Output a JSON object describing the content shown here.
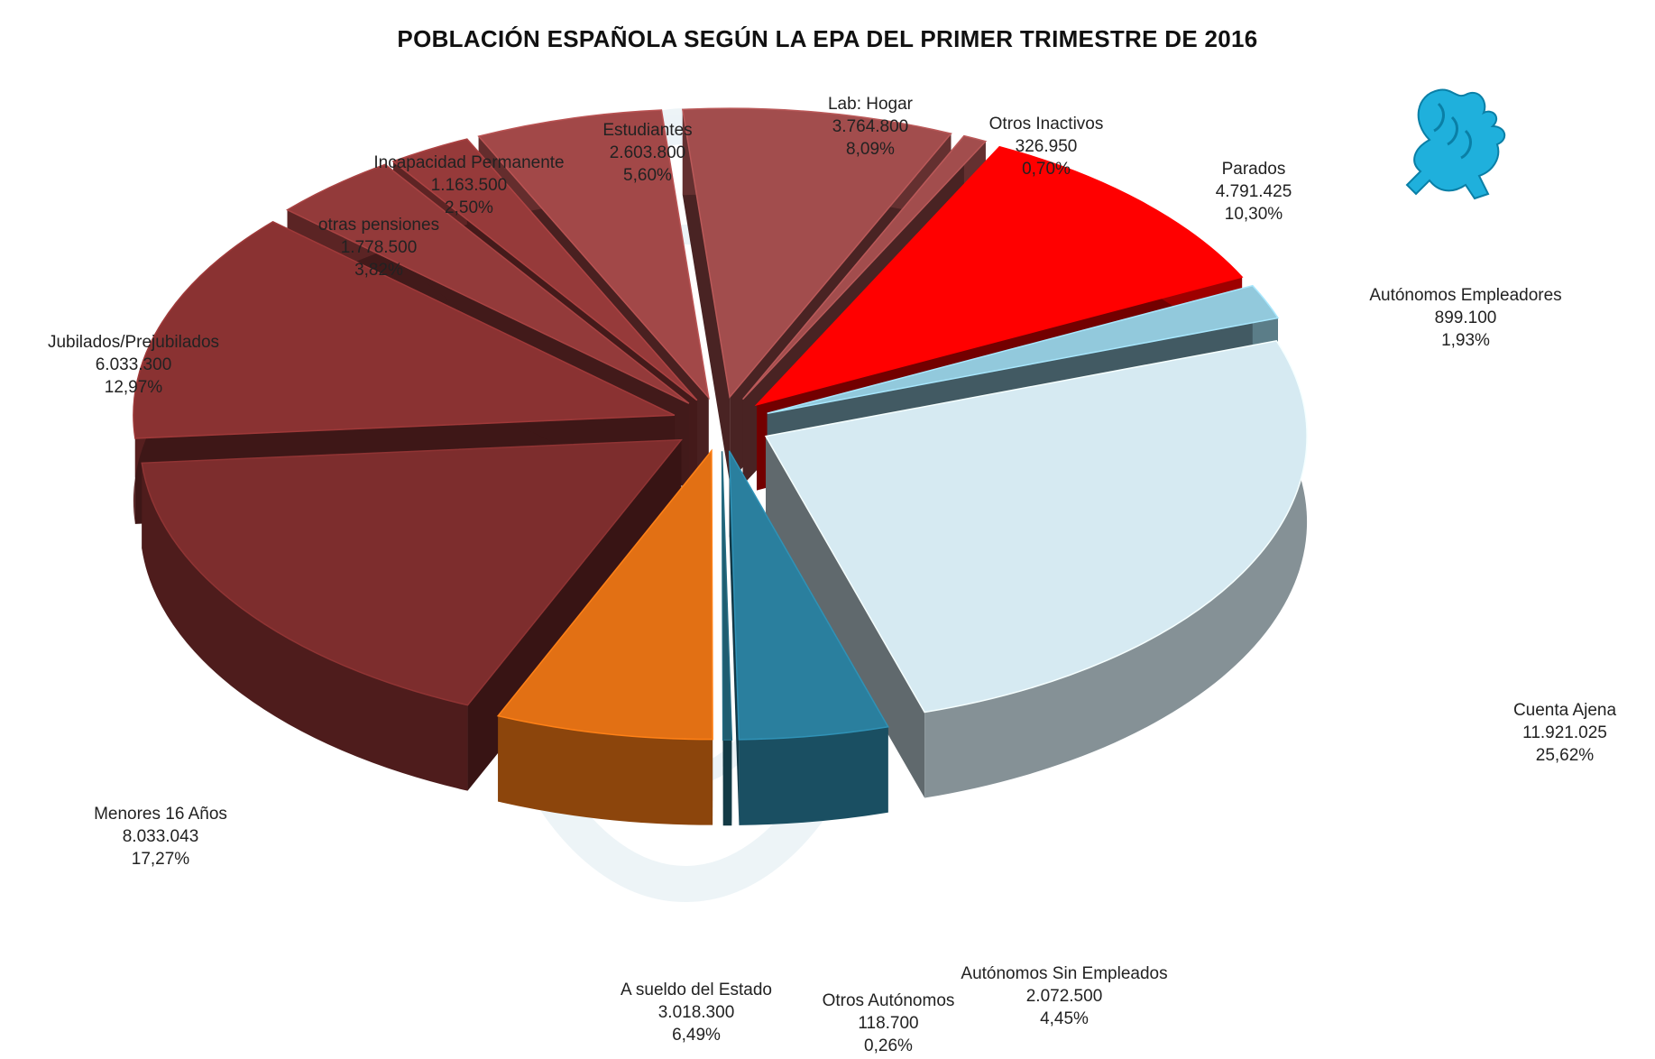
{
  "chart_data": {
    "type": "pie",
    "title": "POBLACIÓN ESPAÑOLA SEGÚN LA EPA DEL PRIMER TRIMESTRE DE 2016",
    "slices": [
      {
        "name": "Lab: Hogar",
        "value": 3764800,
        "value_label": "3.764.800",
        "percent_label": "8,09%",
        "color": "#a24d4d"
      },
      {
        "name": "Otros Inactivos",
        "value": 326950,
        "value_label": "326.950",
        "percent_label": "0,70%",
        "color": "#a24d4d"
      },
      {
        "name": "Parados",
        "value": 4791425,
        "value_label": "4.791.425",
        "percent_label": "10,30%",
        "color": "#ff0000"
      },
      {
        "name": "Autónomos Empleadores",
        "value": 899100,
        "value_label": "899.100",
        "percent_label": "1,93%",
        "color": "#92c9dc"
      },
      {
        "name": "Cuenta Ajena",
        "value": 11921025,
        "value_label": "11.921.025",
        "percent_label": "25,62%",
        "color": "#d6eaf2"
      },
      {
        "name": "Autónomos Sin Empleados",
        "value": 2072500,
        "value_label": "2.072.500",
        "percent_label": "4,45%",
        "color": "#2a7f9e"
      },
      {
        "name": "Otros Autónomos",
        "value": 118700,
        "value_label": "118.700",
        "percent_label": "0,26%",
        "color": "#1f5d70"
      },
      {
        "name": "A sueldo del Estado",
        "value": 3018300,
        "value_label": "3.018.300",
        "percent_label": "6,49%",
        "color": "#e27014"
      },
      {
        "name": "Menores 16 Años",
        "value": 8033043,
        "value_label": "8.033.043",
        "percent_label": "17,27%",
        "color": "#7d2d2d"
      },
      {
        "name": "Jubilados/Prejubilados",
        "value": 6033300,
        "value_label": "6.033.300",
        "percent_label": "12,97%",
        "color": "#8a3232"
      },
      {
        "name": "otras pensiones",
        "value": 1778500,
        "value_label": "1.778.500",
        "percent_label": "3,82%",
        "color": "#933a3a"
      },
      {
        "name": "Incapacidad Permanente",
        "value": 1163500,
        "value_label": "1.163.500",
        "percent_label": "2,50%",
        "color": "#963a3a"
      },
      {
        "name": "Estudiantes",
        "value": 2603800,
        "value_label": "2.603.800",
        "percent_label": "5,60%",
        "color": "#a24848"
      }
    ],
    "legend": "none"
  },
  "logo": {
    "name": "griffin-logo-icon",
    "color": "#1fb0dc"
  }
}
